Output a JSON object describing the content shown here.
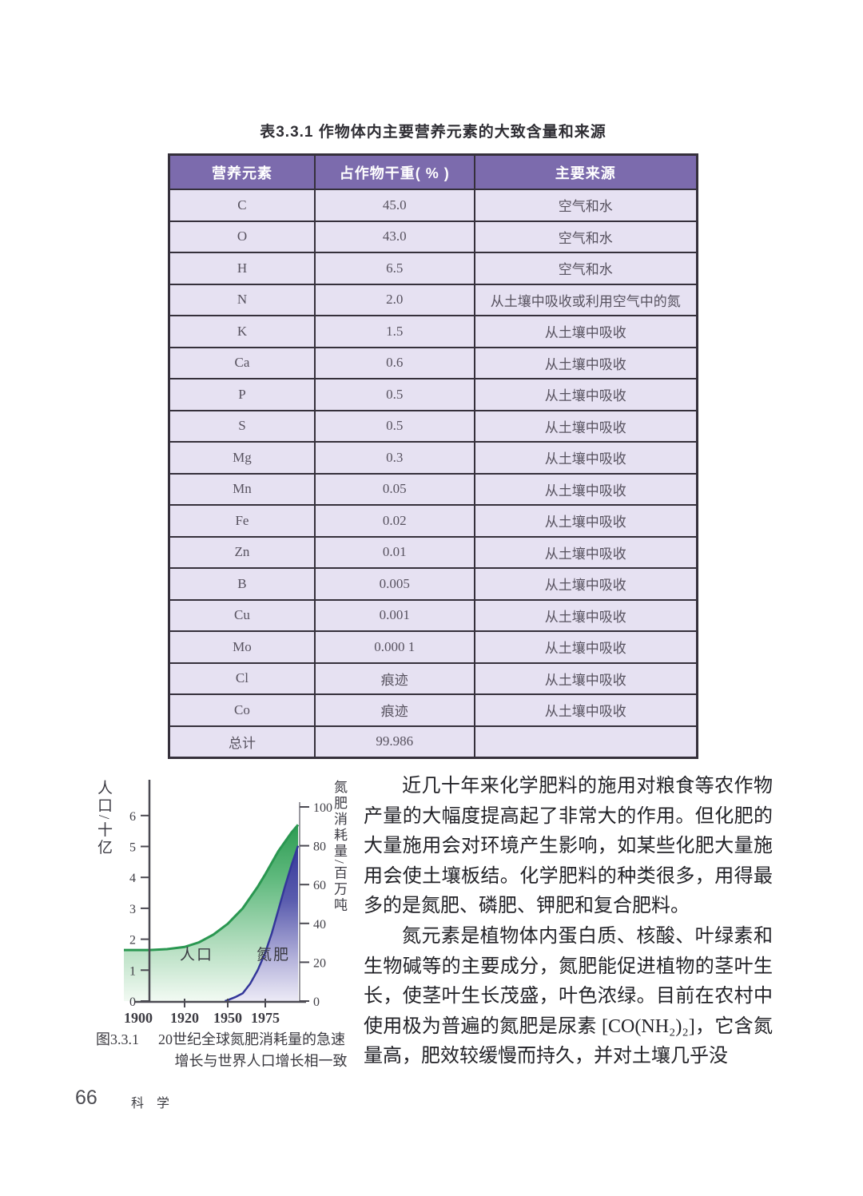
{
  "table": {
    "title": "表3.3.1  作物体内主要营养元素的大致含量和来源",
    "headers": [
      "营养元素",
      "占作物干重( % )",
      "主要来源"
    ],
    "rows": [
      [
        "C",
        "45.0",
        "空气和水"
      ],
      [
        "O",
        "43.0",
        "空气和水"
      ],
      [
        "H",
        "6.5",
        "空气和水"
      ],
      [
        "N",
        "2.0",
        "从土壤中吸收或利用空气中的氮"
      ],
      [
        "K",
        "1.5",
        "从土壤中吸收"
      ],
      [
        "Ca",
        "0.6",
        "从土壤中吸收"
      ],
      [
        "P",
        "0.5",
        "从土壤中吸收"
      ],
      [
        "S",
        "0.5",
        "从土壤中吸收"
      ],
      [
        "Mg",
        "0.3",
        "从土壤中吸收"
      ],
      [
        "Mn",
        "0.05",
        "从土壤中吸收"
      ],
      [
        "Fe",
        "0.02",
        "从土壤中吸收"
      ],
      [
        "Zn",
        "0.01",
        "从土壤中吸收"
      ],
      [
        "B",
        "0.005",
        "从土壤中吸收"
      ],
      [
        "Cu",
        "0.001",
        "从土壤中吸收"
      ],
      [
        "Mo",
        "0.000 1",
        "从土壤中吸收"
      ],
      [
        "Cl",
        "痕迹",
        "从土壤中吸收"
      ],
      [
        "Co",
        "痕迹",
        "从土壤中吸收"
      ],
      [
        "总计",
        "99.986",
        ""
      ]
    ],
    "colors": {
      "header_bg": "#7c6bad",
      "header_text": "#ffffff",
      "row_bg": "#e6e1f2",
      "border": "#35303b"
    }
  },
  "chart_data": {
    "type": "area",
    "title": "",
    "x_axis": {
      "tick_years": [
        1900,
        1920,
        1950,
        1975
      ],
      "range": [
        1900,
        2000
      ]
    },
    "left_axis": {
      "label": "人口/十亿",
      "ticks": [
        0,
        1,
        2,
        3,
        4,
        5,
        6
      ],
      "range": [
        0,
        6
      ]
    },
    "right_axis": {
      "label": "氮肥消耗量/百万吨",
      "ticks": [
        0,
        20,
        40,
        60,
        80,
        100
      ],
      "range": [
        0,
        100
      ]
    },
    "legend_position": "inside-plot",
    "grid": false,
    "series": [
      {
        "name": "人口",
        "axis": "left",
        "color": "#2f9e55",
        "x": [
          1900,
          1910,
          1920,
          1930,
          1940,
          1950,
          1960,
          1970,
          1975,
          1985,
          1995,
          2000
        ],
        "values": [
          1.65,
          1.68,
          1.75,
          1.9,
          2.15,
          2.5,
          3.0,
          3.7,
          4.1,
          4.85,
          5.45,
          5.7
        ]
      },
      {
        "name": "氮肥",
        "axis": "right",
        "color": "#3b3e9b",
        "x": [
          1948,
          1950,
          1955,
          1960,
          1965,
          1970,
          1975,
          1980,
          1985,
          1990,
          1995,
          2000
        ],
        "values": [
          0,
          0.5,
          2,
          4,
          9,
          16,
          25,
          35,
          47,
          59,
          70,
          80
        ]
      }
    ]
  },
  "figure": {
    "number": "图3.3.1",
    "caption_line1": "20世纪全球氮肥消耗量的急速",
    "caption_line2": "增长与世界人口增长相一致"
  },
  "main": {
    "paragraph1": "近几十年来化学肥料的施用对粮食等农作物产量的大幅度提高起了非常大的作用。但化肥的大量施用会对环境产生影响，如某些化肥大量施用会使土壤板结。化学肥料的种类很多，用得最多的是氮肥、磷肥、钾肥和复合肥料。",
    "paragraph2": "氮元素是植物体内蛋白质、核酸、叶绿素和生物碱等的主要成分，氮肥能促进植物的茎叶生长，使茎叶生长茂盛，叶色浓绿。目前在农村中使用极为普遍的氮肥是尿素 [CO(NH₂)₂]，它含氮量高，肥效较缓慢而持久，并对土壤几乎没"
  },
  "footer": {
    "page_number": "66",
    "subject": "科 学"
  }
}
